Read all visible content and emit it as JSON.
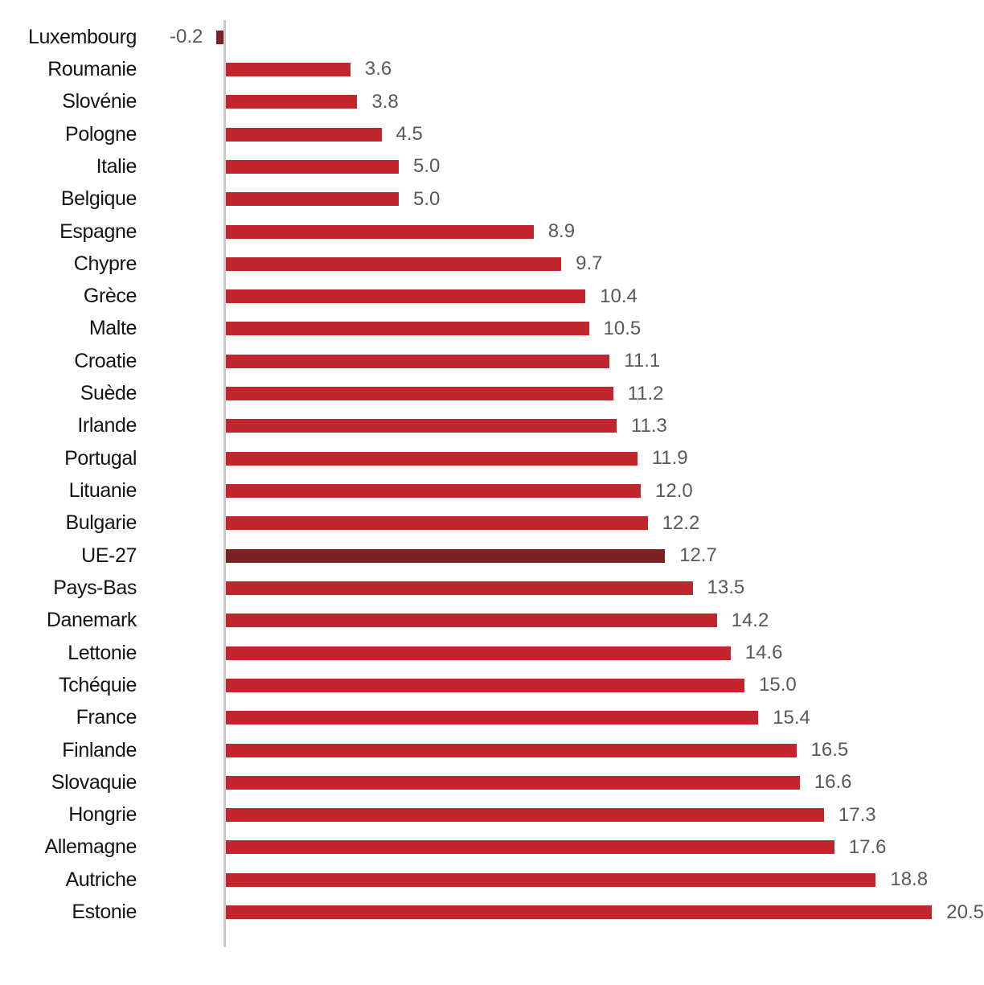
{
  "chart_data": {
    "type": "bar",
    "orientation": "horizontal",
    "title": "",
    "xlabel": "",
    "ylabel": "",
    "grid": false,
    "legend": false,
    "xlim": [
      -0.5,
      21
    ],
    "categories": [
      "Luxembourg",
      "Roumanie",
      "Slovénie",
      "Pologne",
      "Italie",
      "Belgique",
      "Espagne",
      "Chypre",
      "Grèce",
      "Malte",
      "Croatie",
      "Suède",
      "Irlande",
      "Portugal",
      "Lituanie",
      "Bulgarie",
      "UE-27",
      "Pays-Bas",
      "Danemark",
      "Lettonie",
      "Tchéquie",
      "France",
      "Finlande",
      "Slovaquie",
      "Hongrie",
      "Allemagne",
      "Autriche",
      "Estonie"
    ],
    "values": [
      -0.2,
      3.6,
      3.8,
      4.5,
      5.0,
      5.0,
      8.9,
      9.7,
      10.4,
      10.5,
      11.1,
      11.2,
      11.3,
      11.9,
      12.0,
      12.2,
      12.7,
      13.5,
      14.2,
      14.6,
      15.0,
      15.4,
      16.5,
      16.6,
      17.3,
      17.6,
      18.8,
      20.5
    ],
    "value_labels": [
      "-0.2",
      "3.6",
      "3.8",
      "4.5",
      "5.0",
      "5.0",
      "8.9",
      "9.7",
      "10.4",
      "10.5",
      "11.1",
      "11.2",
      "11.3",
      "11.9",
      "12.0",
      "12.2",
      "12.7",
      "13.5",
      "14.2",
      "14.6",
      "15.0",
      "15.4",
      "16.5",
      "16.6",
      "17.3",
      "17.6",
      "18.8",
      "20.5"
    ],
    "highlight_indices": [
      0,
      16
    ],
    "colors": {
      "bar": "#c0262b",
      "highlight": "#7d2023",
      "axis": "#c9c9c9",
      "value_text": "#595959",
      "label_text": "#141414"
    }
  }
}
